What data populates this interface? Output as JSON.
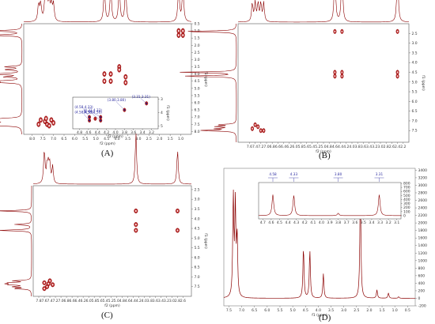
{
  "panels": [
    {
      "id": "A",
      "label": "(A)",
      "type": "2D-NMR",
      "xlabel": "f2 (ppm)",
      "ylabel": "f1 (ppm)",
      "xlim": [
        8.4,
        0.5
      ],
      "ylim": [
        0.5,
        8.2
      ],
      "x_ticks": [
        "8.0",
        "7.5",
        "7.0",
        "6.5",
        "6.0",
        "5.5",
        "5.0",
        "4.5",
        "4.0",
        "3.5",
        "3.0",
        "2.5",
        "2.0",
        "1.5",
        "1.0"
      ],
      "y_ticks": [
        "0.5",
        "1.0",
        "1.5",
        "2.0",
        "2.5",
        "3.0",
        "3.5",
        "4.0",
        "4.5",
        "5.0",
        "5.5",
        "6.0",
        "6.5",
        "7.0",
        "7.5",
        "8.0"
      ],
      "cross_peaks": [
        [
          1.1,
          1.0
        ],
        [
          0.9,
          1.3
        ],
        [
          1.1,
          1.3
        ],
        [
          0.9,
          1.0
        ],
        [
          4.6,
          4.0
        ],
        [
          4.3,
          4.0
        ],
        [
          4.6,
          4.5
        ],
        [
          4.3,
          4.5
        ],
        [
          3.6,
          4.2
        ],
        [
          3.6,
          4.6
        ],
        [
          3.9,
          3.5
        ],
        [
          3.9,
          3.7
        ],
        [
          7.6,
          7.2
        ],
        [
          7.4,
          7.3
        ],
        [
          7.3,
          7.5
        ],
        [
          7.2,
          7.6
        ],
        [
          7.1,
          7.2
        ],
        [
          7.0,
          7.4
        ],
        [
          7.35,
          7.1
        ],
        [
          7.7,
          7.5
        ]
      ],
      "inset": {
        "xlim": [
          4.95,
          3.05
        ],
        "ylim": [
          2.85,
          5.2
        ],
        "x_ticks": [
          "4.8",
          "4.6",
          "4.4",
          "4.2",
          "4.0",
          "3.8",
          "3.6",
          "3.4",
          "3.2"
        ],
        "y_ticks": [
          "3",
          "4",
          "5"
        ],
        "xlabel": "f2 (ppm)",
        "ylabel": "f1 (ppm)",
        "annotations": [
          {
            "text": "(4.33,4.33)",
            "x": 4.33,
            "y": 4.33
          },
          {
            "text": "(4.58,4.58)",
            "x": 4.58,
            "y": 4.58
          },
          {
            "text": "(3.80,3.80)",
            "x": 3.8,
            "y": 3.8
          },
          {
            "text": "(3.31,3.31)",
            "x": 3.31,
            "y": 3.31
          },
          {
            "text": "(4.33,4.58)",
            "x": 4.33,
            "y": 4.58
          },
          {
            "text": "(4.58,4.33)",
            "x": 4.58,
            "y": 4.33
          }
        ],
        "peaks": [
          [
            4.58,
            4.58
          ],
          [
            4.33,
            4.33
          ],
          [
            4.58,
            4.33
          ],
          [
            4.33,
            4.58
          ],
          [
            3.8,
            3.8
          ],
          [
            3.31,
            3.31
          ],
          [
            4.45,
            4.45
          ]
        ]
      }
    },
    {
      "id": "B",
      "label": "(B)",
      "type": "2D-NMR",
      "xlabel": "f2 (ppm)",
      "ylabel": "f1 (ppm)",
      "xlim": [
        8.0,
        2.0
      ],
      "ylim": [
        2.0,
        8.1
      ],
      "x_ticks": [
        "7.6",
        "7.4",
        "7.2",
        "7.0",
        "6.8",
        "6.6",
        "6.4",
        "6.2",
        "6.0",
        "5.8",
        "5.6",
        "5.4",
        "5.2",
        "5.0",
        "4.8",
        "4.6",
        "4.4",
        "4.2",
        "4.0",
        "3.8",
        "3.6",
        "3.4",
        "3.2",
        "3.0",
        "2.8",
        "2.6",
        "2.4",
        "2.2"
      ],
      "y_ticks": [
        "2.5",
        "3.0",
        "3.5",
        "4.0",
        "4.5",
        "5.0",
        "5.5",
        "6.0",
        "6.5",
        "7.0",
        "7.5"
      ],
      "cross_peaks": [
        [
          4.6,
          2.4
        ],
        [
          4.35,
          2.4
        ],
        [
          2.4,
          2.4
        ],
        [
          2.4,
          4.5
        ],
        [
          4.6,
          4.5
        ],
        [
          4.35,
          4.5
        ],
        [
          4.6,
          4.7
        ],
        [
          4.35,
          4.7
        ],
        [
          2.4,
          4.7
        ],
        [
          7.4,
          7.2
        ],
        [
          7.3,
          7.3
        ],
        [
          7.2,
          7.5
        ],
        [
          7.5,
          7.4
        ],
        [
          7.1,
          7.5
        ]
      ]
    },
    {
      "id": "C",
      "label": "(C)",
      "type": "2D-NMR",
      "xlabel": "f2 (ppm)",
      "ylabel": "f1 (ppm)",
      "xlim": [
        8.0,
        2.3
      ],
      "ylim": [
        2.3,
        8.0
      ],
      "x_ticks": [
        "7.8",
        "7.6",
        "7.4",
        "7.2",
        "7.0",
        "6.8",
        "6.6",
        "6.4",
        "6.2",
        "6.0",
        "5.8",
        "5.6",
        "5.4",
        "5.2",
        "5.0",
        "4.8",
        "4.6",
        "4.4",
        "4.2",
        "4.0",
        "3.8",
        "3.6",
        "3.4",
        "3.2",
        "3.0",
        "2.8",
        "2.6"
      ],
      "y_ticks": [
        "2.5",
        "3.0",
        "3.5",
        "4.0",
        "4.5",
        "5.0",
        "5.5",
        "6.0",
        "6.5",
        "7.0",
        "7.5"
      ],
      "cross_peaks": [
        [
          4.3,
          3.6
        ],
        [
          2.8,
          3.6
        ],
        [
          4.3,
          4.6
        ],
        [
          2.8,
          4.6
        ],
        [
          4.3,
          4.3
        ],
        [
          7.6,
          7.3
        ],
        [
          7.5,
          7.5
        ],
        [
          7.4,
          7.2
        ],
        [
          7.3,
          7.4
        ],
        [
          7.6,
          7.6
        ],
        [
          7.45,
          7.35
        ]
      ]
    },
    {
      "id": "D",
      "label": "(D)",
      "type": "1D-NMR",
      "xlabel": "f1 (ppm)",
      "xlim": [
        7.7,
        0.2
      ],
      "x_ticks": [
        "7.5",
        "7.0",
        "6.5",
        "6.0",
        "5.5",
        "5.0",
        "4.5",
        "4.0",
        "3.5",
        "3.0",
        "2.5",
        "2.0",
        "1.5",
        "1.0",
        "0.5"
      ],
      "y_ticks": [
        "-200",
        "0",
        "200",
        "400",
        "600",
        "800",
        "1000",
        "1200",
        "1400",
        "1600",
        "1800",
        "2000",
        "2200",
        "2400",
        "2600",
        "2800",
        "3000",
        "3200",
        "3400"
      ],
      "ylim": [
        -200,
        3450
      ],
      "peaks": [
        [
          7.33,
          2700
        ],
        [
          7.25,
          2400
        ],
        [
          7.18,
          1600
        ],
        [
          4.58,
          1350
        ],
        [
          4.33,
          1280
        ],
        [
          3.8,
          650
        ],
        [
          2.35,
          2950
        ],
        [
          1.7,
          220
        ],
        [
          1.25,
          140
        ],
        [
          0.85,
          40
        ]
      ],
      "inset": {
        "xlim": [
          4.75,
          3.05
        ],
        "ylim": [
          -80,
          820
        ],
        "x_ticks": [
          "4.7",
          "4.6",
          "4.5",
          "4.4",
          "4.3",
          "4.2",
          "4.1",
          "4.0",
          "3.9",
          "3.8",
          "3.7",
          "3.6",
          "3.5",
          "3.4",
          "3.3",
          "3.2",
          "3.1"
        ],
        "y_ticks": [
          "0",
          "100",
          "200",
          "300",
          "400",
          "500",
          "600",
          "700",
          "800"
        ],
        "peaks": [
          [
            4.58,
            520
          ],
          [
            4.33,
            500
          ],
          [
            3.8,
            60
          ],
          [
            3.31,
            520
          ]
        ],
        "integrals": [
          "4.58",
          "4.33",
          "3.80",
          "3.31"
        ]
      }
    }
  ]
}
